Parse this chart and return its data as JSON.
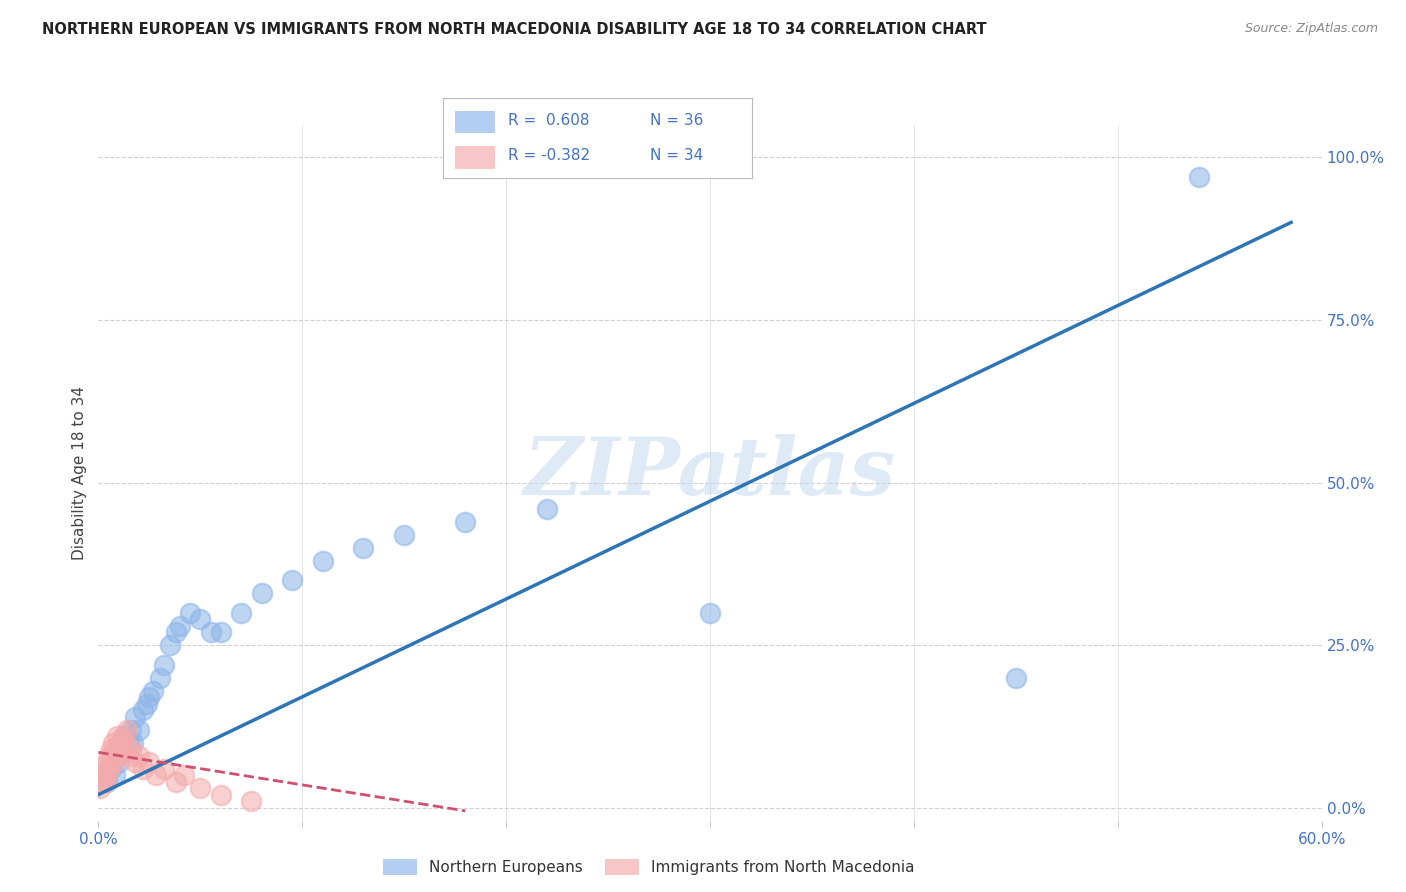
{
  "title": "NORTHERN EUROPEAN VS IMMIGRANTS FROM NORTH MACEDONIA DISABILITY AGE 18 TO 34 CORRELATION CHART",
  "source": "Source: ZipAtlas.com",
  "ylabel": "Disability Age 18 to 34",
  "watermark": "ZIPatlas",
  "legend_label_blue": "Northern Europeans",
  "legend_label_pink": "Immigrants from North Macedonia",
  "blue_color": "#8AB4E8",
  "pink_color": "#F4AAAA",
  "line_blue": "#2E75B6",
  "line_pink": "#D05070",
  "tick_color": "#4472C4",
  "blue_scatter_x": [
    0.004,
    0.006,
    0.008,
    0.009,
    0.01,
    0.012,
    0.013,
    0.015,
    0.016,
    0.017,
    0.018,
    0.02,
    0.022,
    0.024,
    0.025,
    0.027,
    0.03,
    0.032,
    0.035,
    0.038,
    0.04,
    0.045,
    0.05,
    0.055,
    0.06,
    0.07,
    0.08,
    0.095,
    0.11,
    0.13,
    0.15,
    0.18,
    0.22,
    0.3,
    0.45,
    0.54
  ],
  "blue_scatter_y": [
    0.04,
    0.06,
    0.05,
    0.08,
    0.07,
    0.09,
    0.11,
    0.1,
    0.12,
    0.1,
    0.14,
    0.12,
    0.15,
    0.16,
    0.17,
    0.18,
    0.2,
    0.22,
    0.25,
    0.27,
    0.28,
    0.3,
    0.29,
    0.27,
    0.27,
    0.3,
    0.33,
    0.35,
    0.38,
    0.4,
    0.42,
    0.44,
    0.46,
    0.3,
    0.2,
    0.97
  ],
  "pink_scatter_x": [
    0.001,
    0.002,
    0.002,
    0.003,
    0.003,
    0.004,
    0.004,
    0.005,
    0.005,
    0.006,
    0.006,
    0.007,
    0.007,
    0.008,
    0.008,
    0.009,
    0.01,
    0.011,
    0.012,
    0.013,
    0.014,
    0.015,
    0.016,
    0.018,
    0.02,
    0.022,
    0.025,
    0.028,
    0.032,
    0.038,
    0.042,
    0.05,
    0.06,
    0.075
  ],
  "pink_scatter_y": [
    0.03,
    0.04,
    0.05,
    0.06,
    0.04,
    0.07,
    0.05,
    0.06,
    0.08,
    0.07,
    0.09,
    0.08,
    0.1,
    0.09,
    0.07,
    0.11,
    0.1,
    0.09,
    0.11,
    0.1,
    0.12,
    0.08,
    0.09,
    0.07,
    0.08,
    0.06,
    0.07,
    0.05,
    0.06,
    0.04,
    0.05,
    0.03,
    0.02,
    0.01
  ],
  "blue_line_x0": 0.0,
  "blue_line_y0": 0.02,
  "blue_line_x1": 0.585,
  "blue_line_y1": 0.9,
  "pink_line_x0": 0.0,
  "pink_line_y0": 0.085,
  "pink_line_x1": 0.18,
  "pink_line_y1": -0.005,
  "xlim": [
    0.0,
    0.6
  ],
  "ylim": [
    -0.02,
    1.05
  ],
  "yticks": [
    0.0,
    0.25,
    0.5,
    0.75,
    1.0
  ],
  "ytick_labels": [
    "0.0%",
    "25.0%",
    "50.0%",
    "75.0%",
    "100.0%"
  ],
  "xticks": [
    0.0,
    0.1,
    0.2,
    0.3,
    0.4,
    0.5,
    0.6
  ],
  "xtick_labels_show": [
    "0.0%",
    "60.0%"
  ],
  "grid_color": "#CCCCCC",
  "background_color": "#FFFFFF"
}
